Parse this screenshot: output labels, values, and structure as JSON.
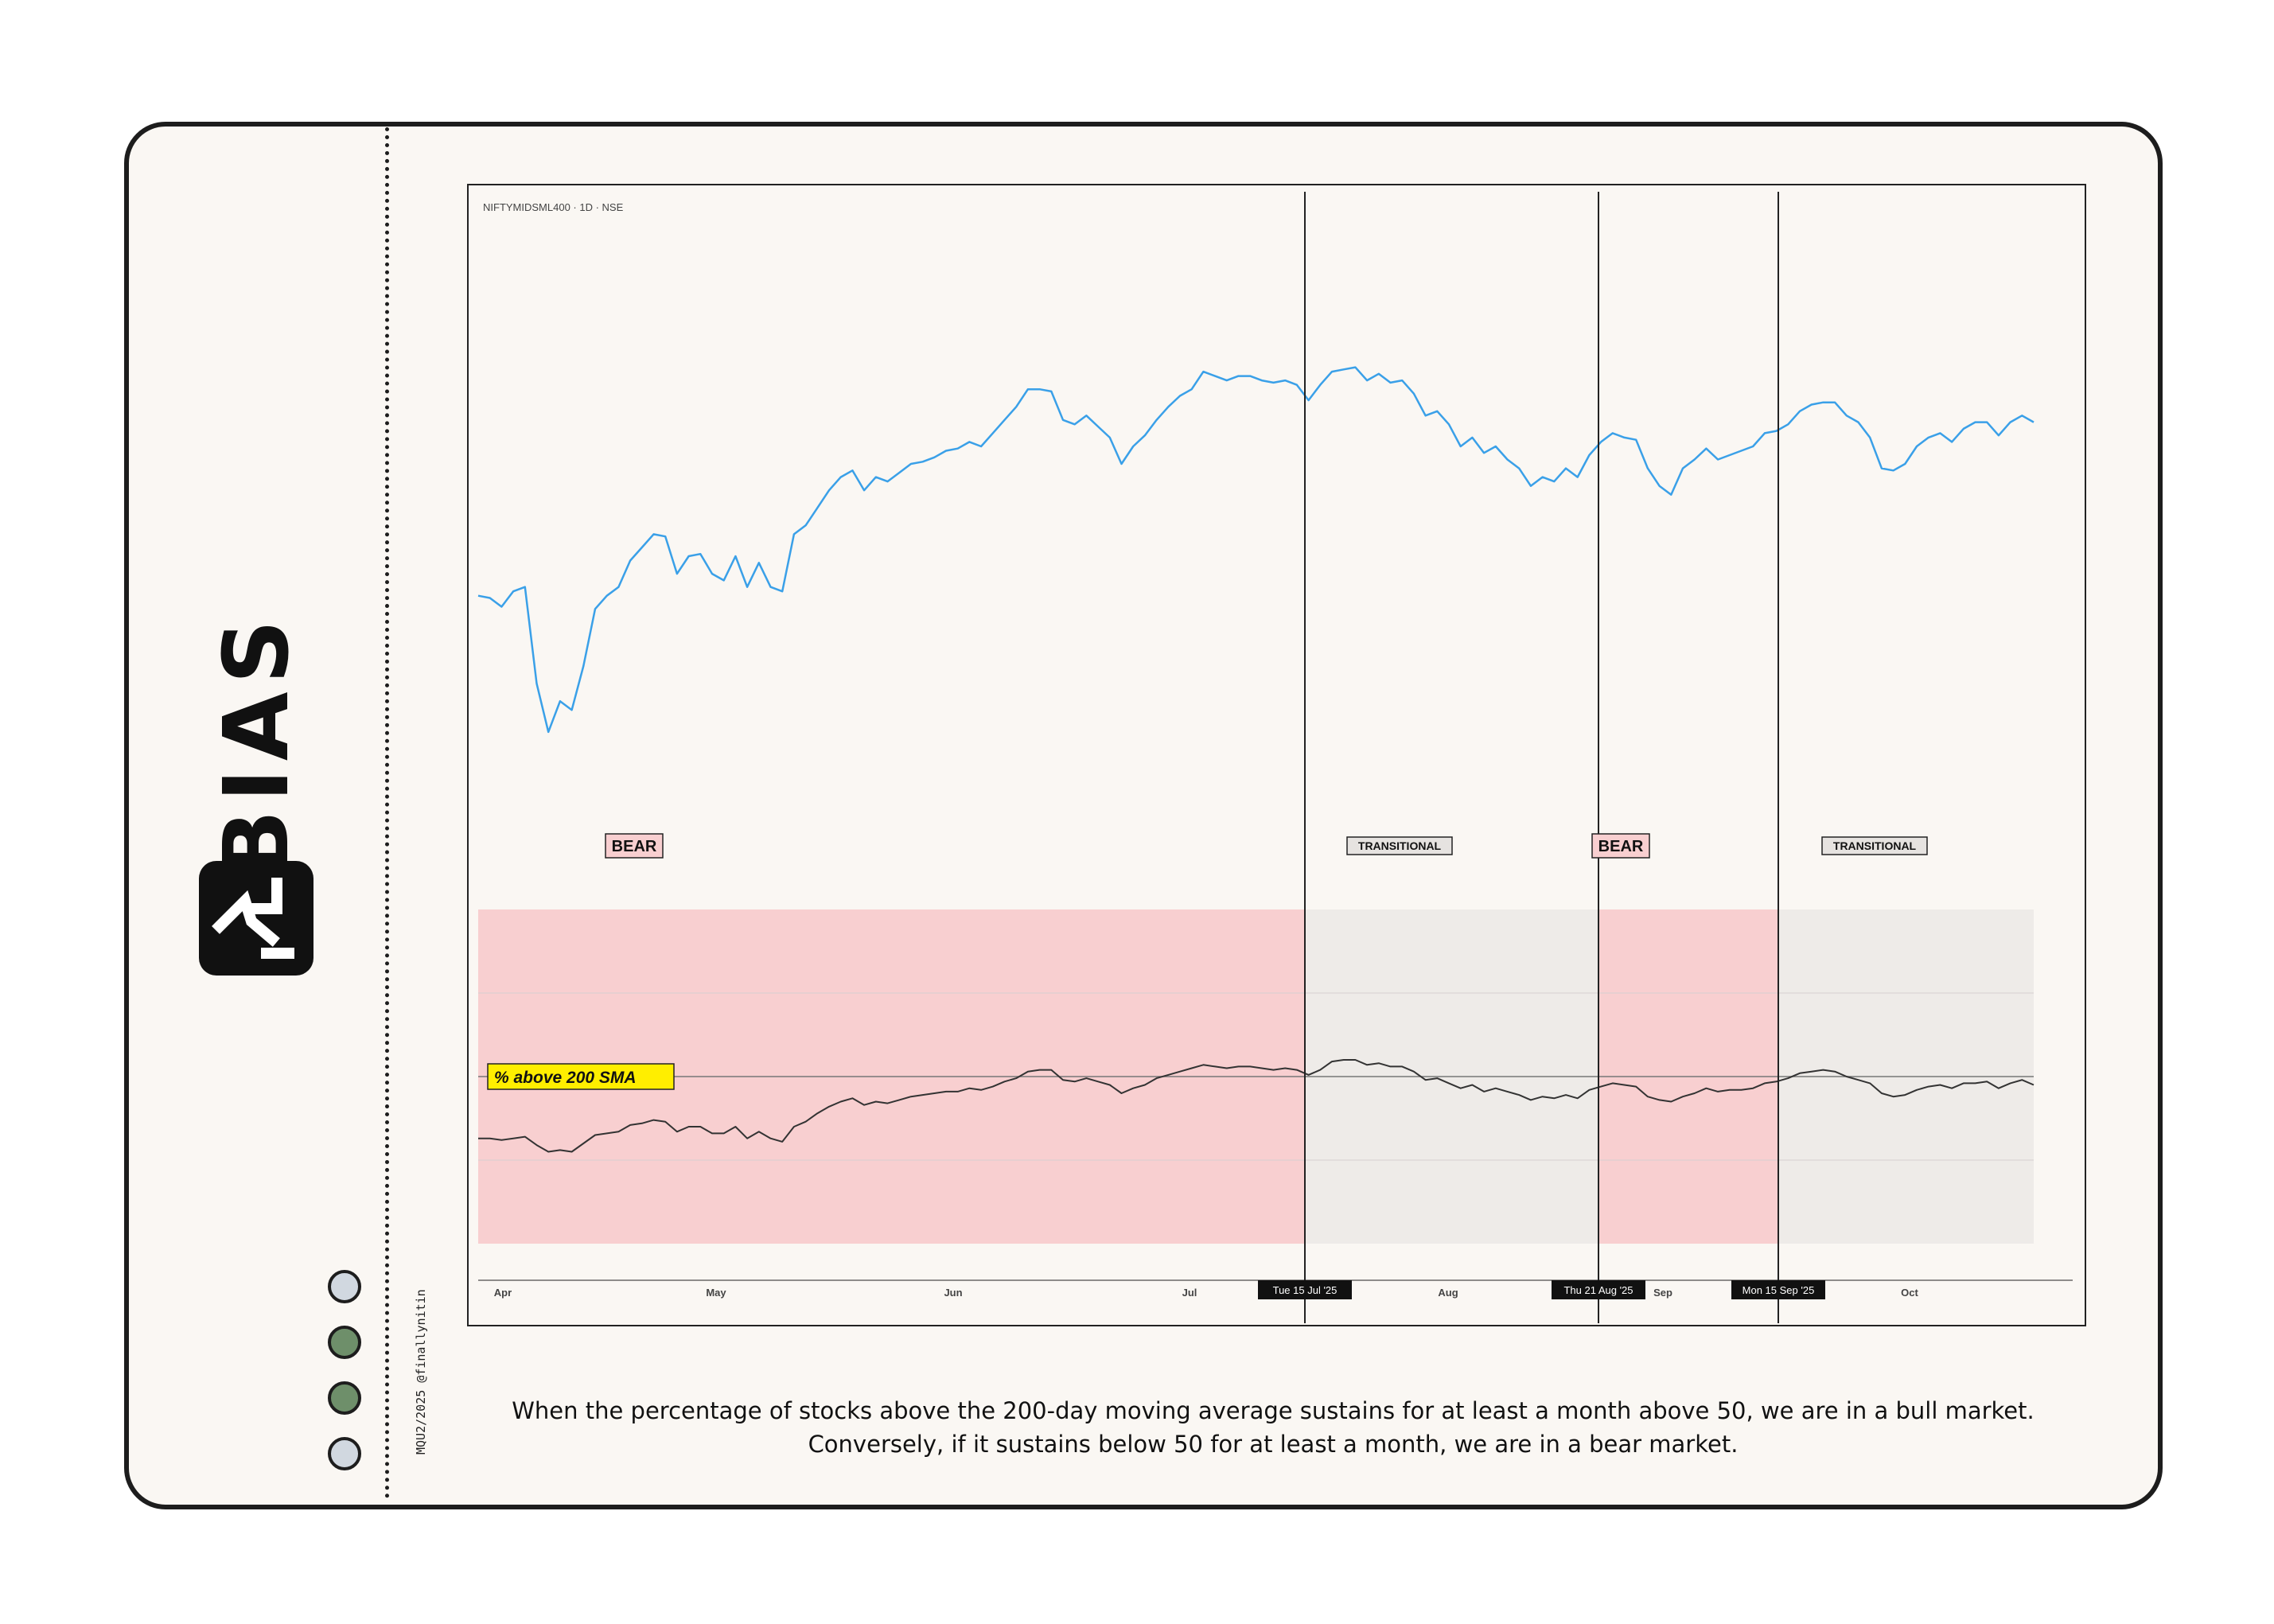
{
  "brand": {
    "name": "BIAS",
    "logo_icon": "trend-arrow-icon",
    "credit": "MQU2/2025 @finallynitin",
    "dot_colors": [
      "#d1d8e0",
      "#6e8f6a",
      "#6e8f6a",
      "#d1d8e0"
    ]
  },
  "caption": "When the percentage of stocks above the 200-day moving average sustains for at least a month above 50, we are in a bull market. Conversely, if it sustains below 50 for at least a month, we are in a bear market.",
  "chart_data": {
    "type": "line",
    "title": "NIFTYMIDSML400 · 1D · NSE",
    "x_month_labels": [
      "Apr",
      "May",
      "Jun",
      "Jul",
      "Aug",
      "Sep",
      "Oct"
    ],
    "price_series": {
      "name": "NIFTYMIDSML400",
      "color": "#3aa0e8",
      "values": [
        57,
        56.5,
        54.5,
        58,
        59,
        37,
        26,
        33,
        31,
        41,
        54,
        57,
        59,
        65,
        68,
        71,
        70.5,
        62,
        66,
        66.5,
        62,
        60.5,
        66,
        59,
        64.5,
        59,
        58,
        71,
        73,
        77,
        81,
        84,
        85.5,
        81,
        84,
        83,
        85,
        87,
        87.5,
        88.5,
        90,
        90.5,
        92,
        91,
        94,
        97,
        100,
        104,
        104,
        103.5,
        97,
        96,
        98,
        95.5,
        93,
        87,
        91,
        93.5,
        97,
        100,
        102.5,
        104,
        108,
        107,
        106,
        107,
        107,
        106,
        105.5,
        106,
        105,
        101.5,
        105,
        108,
        108.5,
        109,
        106,
        107.5,
        105.5,
        106,
        103,
        98,
        99,
        96,
        91,
        93,
        89.5,
        91,
        88,
        86,
        82,
        84,
        83,
        86,
        84,
        89,
        92,
        94,
        93,
        92.5,
        86,
        82,
        80,
        86,
        88,
        90.5,
        88,
        89,
        90,
        91,
        94,
        94.5,
        96,
        99,
        100.5,
        101,
        101,
        98,
        96.5,
        93,
        86,
        85.5,
        87,
        91,
        93,
        94,
        92,
        95,
        96.5,
        96.5,
        93.5,
        96.5,
        98,
        96.5
      ],
      "y_range": [
        20,
        112
      ]
    },
    "breadth_series": {
      "name": "% above 200 SMA",
      "color": "#333333",
      "values": [
        31.5,
        31.5,
        31,
        31.5,
        32,
        29.5,
        27.5,
        28,
        27.5,
        30,
        32.5,
        33,
        33.5,
        35.5,
        36,
        37,
        36.5,
        33.5,
        35,
        35,
        33,
        33,
        35,
        31.5,
        33.5,
        31.5,
        30.5,
        35,
        36.5,
        39,
        41,
        42.5,
        43.5,
        41.5,
        42.5,
        42,
        43,
        44,
        44.5,
        45,
        45.5,
        45.5,
        46.5,
        46,
        47,
        48.5,
        49.5,
        51.5,
        52,
        52,
        49,
        48.5,
        49.5,
        48.5,
        47.5,
        45,
        46.5,
        47.5,
        49.5,
        50.5,
        51.5,
        52.5,
        53.5,
        53,
        52.5,
        53,
        53,
        52.5,
        52,
        52.5,
        52,
        50.5,
        52,
        54.5,
        55,
        55,
        53.5,
        54,
        53,
        53,
        51.5,
        49,
        49.5,
        48,
        46.5,
        47.5,
        45.5,
        46.5,
        45.5,
        44.5,
        43,
        44,
        43.5,
        44.5,
        43.5,
        46,
        47,
        48,
        47.5,
        47,
        44,
        43,
        42.5,
        44,
        45,
        46.5,
        45.5,
        46,
        46,
        46.5,
        48,
        48.5,
        49.5,
        51,
        51.5,
        52,
        51.5,
        50,
        49,
        48,
        45,
        44,
        44.5,
        46,
        47,
        47.5,
        46.5,
        48,
        48,
        48.5,
        46.5,
        48,
        49,
        47.5
      ],
      "y_range": [
        0,
        100
      ],
      "threshold_label": "% above 200 SMA",
      "threshold_value": 50,
      "label_color": "#ffee00"
    },
    "regimes": [
      {
        "label": "BEAR",
        "start": "Apr",
        "end": "Tue 15 Jul '25",
        "color": "#f8cfd0"
      },
      {
        "label": "TRANSITIONAL",
        "start": "Tue 15 Jul '25",
        "end": "Thu 21 Aug '25",
        "color": "#eeebe8"
      },
      {
        "label": "BEAR",
        "start": "Thu 21 Aug '25",
        "end": "Mon 15 Sep '25",
        "color": "#f8cfd0"
      },
      {
        "label": "TRANSITIONAL",
        "start": "Mon 15 Sep '25",
        "end": "Oct",
        "color": "#eeebe8"
      }
    ],
    "marker_dates": [
      "Tue 15 Jul '25",
      "Thu 21 Aug '25",
      "Mon 15 Sep '25"
    ]
  }
}
